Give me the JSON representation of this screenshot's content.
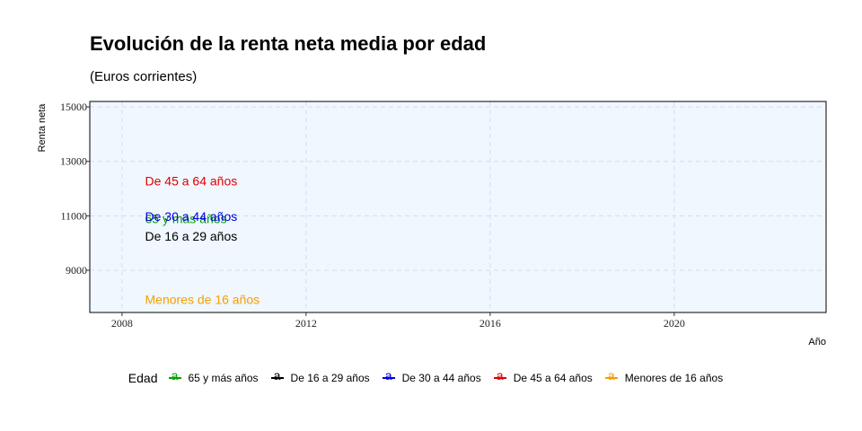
{
  "chart_data": {
    "type": "line",
    "title": "Evolución de la renta neta media por edad",
    "subtitle": "(Euros corrientes)",
    "xlabel": "Año",
    "ylabel": "Renta neta",
    "xlim": [
      2007.3,
      2023.3
    ],
    "ylim": [
      7450,
      15200
    ],
    "x_ticks": [
      2008,
      2012,
      2016,
      2020
    ],
    "y_ticks": [
      9000,
      11000,
      13000,
      15000
    ],
    "grid": true,
    "legend_position": "bottom",
    "legend_title": "Edad",
    "series": [
      {
        "name": "65 y más años",
        "color": "#00a000",
        "label_x": 2008.5,
        "label_y": 10900
      },
      {
        "name": "De 16 a 29 años",
        "color": "#000000",
        "label_x": 2008.5,
        "label_y": 10250
      },
      {
        "name": "De 30 a 44 años",
        "color": "#0000e0",
        "label_x": 2008.5,
        "label_y": 10980
      },
      {
        "name": "De 45 a 64 años",
        "color": "#e00000",
        "label_x": 2008.5,
        "label_y": 12280
      },
      {
        "name": "Menores de 16 años",
        "color": "#f5a000",
        "label_x": 2008.5,
        "label_y": 7930
      }
    ]
  }
}
